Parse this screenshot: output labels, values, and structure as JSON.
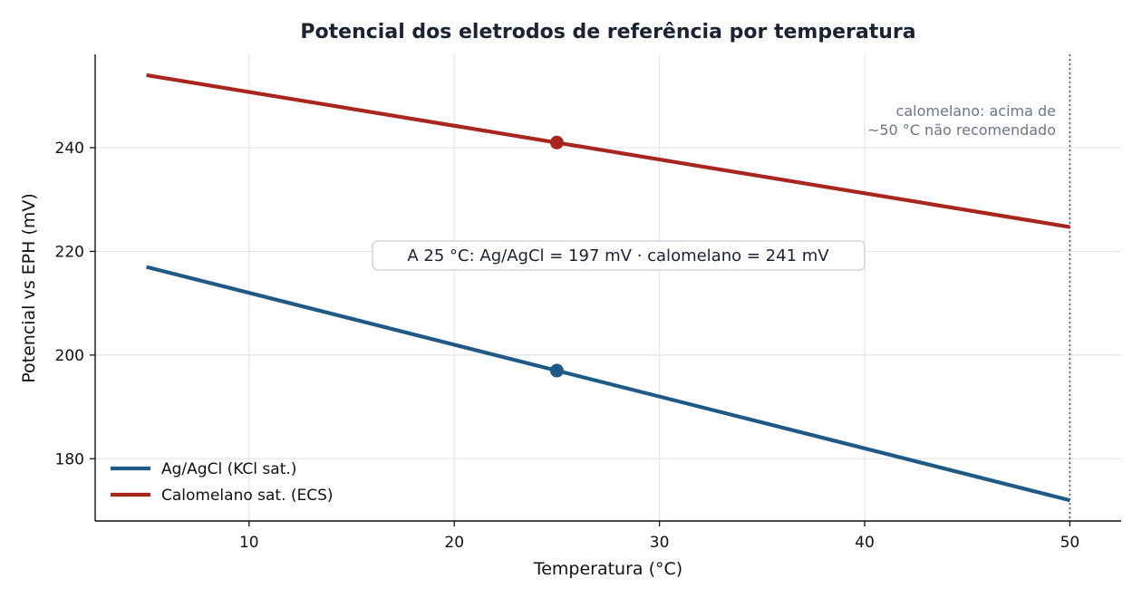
{
  "chart_data": {
    "type": "line",
    "title": "Potencial dos eletrodos de referência por temperatura",
    "xlabel": "Temperatura (°C)",
    "ylabel": "Potencial vs EPH (mV)",
    "xlim": [
      2.5,
      52.5
    ],
    "ylim": [
      168,
      258
    ],
    "xticks": [
      10,
      20,
      30,
      40,
      50
    ],
    "yticks": [
      180,
      200,
      220,
      240
    ],
    "grid": true,
    "legend_position": "lower-left",
    "series": [
      {
        "name": "Ag/AgCl (KCl sat.)",
        "color": "#1f5a87",
        "x": [
          5,
          50
        ],
        "y": [
          217,
          172
        ],
        "marker": {
          "x": 25,
          "y": 197
        }
      },
      {
        "name": "Calomelano sat. (ECS)",
        "color": "#a8261d",
        "x": [
          5,
          50
        ],
        "y": [
          254,
          224.7
        ],
        "marker": {
          "x": 25,
          "y": 241
        }
      }
    ],
    "vline": {
      "x": 50,
      "color": "#4f6a85"
    },
    "annotations": {
      "limit_note_line1": "calomelano: acima de",
      "limit_note_line2": "~50 °C não recomendado",
      "info_box": "A 25 °C:  Ag/AgCl = 197 mV  ·  calomelano = 241 mV"
    }
  }
}
